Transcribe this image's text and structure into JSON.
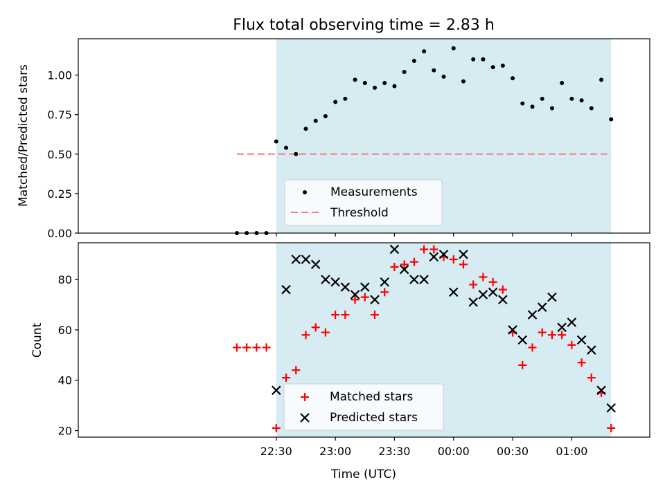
{
  "chart_data": [
    {
      "type": "scatter",
      "title": "Flux total observing time = 2.83 h",
      "xlabel": "",
      "ylabel": "Matched/Predicted stars",
      "ylim": [
        0,
        1.23
      ],
      "yticks": [
        "0.00",
        "0.25",
        "0.50",
        "0.75",
        "1.00"
      ],
      "yticks_values": [
        0,
        0.25,
        0.5,
        0.75,
        1.0
      ],
      "grid": false,
      "legend": {
        "position": "bottom-center",
        "entries": [
          {
            "label": "Measurements",
            "marker": "dot",
            "color": "#000000"
          },
          {
            "label": "Threshold",
            "marker": "dashed-line",
            "color": "#f08080"
          }
        ]
      },
      "shaded_interval": {
        "x": [
          "22:30",
          "01:20"
        ],
        "color": "#add8e6"
      },
      "threshold": {
        "value": 0.5,
        "x": [
          "22:10",
          "01:20"
        ]
      },
      "x": [
        "22:10",
        "22:15",
        "22:20",
        "22:25",
        "22:30",
        "22:35",
        "22:40",
        "22:45",
        "22:50",
        "22:55",
        "23:00",
        "23:05",
        "23:10",
        "23:15",
        "23:20",
        "23:25",
        "23:30",
        "23:35",
        "23:40",
        "23:45",
        "23:50",
        "23:55",
        "00:00",
        "00:05",
        "00:10",
        "00:15",
        "00:20",
        "00:25",
        "00:30",
        "00:35",
        "00:40",
        "00:45",
        "00:50",
        "00:55",
        "01:00",
        "01:05",
        "01:10",
        "01:15",
        "01:20"
      ],
      "series": [
        {
          "name": "Measurements",
          "values": [
            0.0,
            0.0,
            0.0,
            0.0,
            0.58,
            0.54,
            0.5,
            0.66,
            0.71,
            0.74,
            0.83,
            0.85,
            0.97,
            0.95,
            0.92,
            0.95,
            0.93,
            1.02,
            1.09,
            1.15,
            1.03,
            0.99,
            1.17,
            0.96,
            1.1,
            1.1,
            1.05,
            1.06,
            0.98,
            0.82,
            0.8,
            0.85,
            0.79,
            0.95,
            0.85,
            0.84,
            0.79,
            0.97,
            0.72
          ]
        }
      ]
    },
    {
      "type": "scatter",
      "title": "",
      "xlabel": "Time (UTC)",
      "ylabel": "Count",
      "ylim": [
        17.4,
        94.6
      ],
      "yticks": [
        "20",
        "40",
        "60",
        "80"
      ],
      "yticks_values": [
        20,
        40,
        60,
        80
      ],
      "xticks": [
        "22:30",
        "23:00",
        "23:30",
        "00:00",
        "00:30",
        "01:00"
      ],
      "grid": false,
      "legend": {
        "position": "bottom-center",
        "entries": [
          {
            "label": "Matched stars",
            "marker": "plus",
            "color": "#ff0000"
          },
          {
            "label": "Predicted stars",
            "marker": "x",
            "color": "#000000"
          }
        ]
      },
      "shaded_interval": {
        "x": [
          "22:30",
          "01:20"
        ],
        "color": "#add8e6"
      },
      "x": [
        "22:10",
        "22:15",
        "22:20",
        "22:25",
        "22:30",
        "22:35",
        "22:40",
        "22:45",
        "22:50",
        "22:55",
        "23:00",
        "23:05",
        "23:10",
        "23:15",
        "23:20",
        "23:25",
        "23:30",
        "23:35",
        "23:40",
        "23:45",
        "23:50",
        "23:55",
        "00:00",
        "00:05",
        "00:10",
        "00:15",
        "00:20",
        "00:25",
        "00:30",
        "00:35",
        "00:40",
        "00:45",
        "00:50",
        "00:55",
        "01:00",
        "01:05",
        "01:10",
        "01:15",
        "01:20"
      ],
      "series": [
        {
          "name": "Matched stars",
          "values": [
            53,
            53,
            53,
            53,
            21,
            41,
            44,
            58,
            61,
            59,
            66,
            66,
            72,
            73,
            66,
            75,
            85,
            86,
            87,
            92,
            92,
            89,
            88,
            86,
            78,
            81,
            79,
            76,
            59,
            46,
            53,
            59,
            58,
            58,
            54,
            47,
            41,
            35,
            21
          ]
        },
        {
          "name": "Predicted stars",
          "values": [
            null,
            null,
            null,
            null,
            36,
            76,
            88,
            88,
            86,
            80,
            79,
            77,
            74,
            77,
            72,
            79,
            92,
            84,
            80,
            80,
            89,
            90,
            75,
            90,
            71,
            74,
            75,
            72,
            60,
            56,
            66,
            69,
            73,
            61,
            63,
            56,
            52,
            36,
            29
          ]
        }
      ]
    }
  ]
}
